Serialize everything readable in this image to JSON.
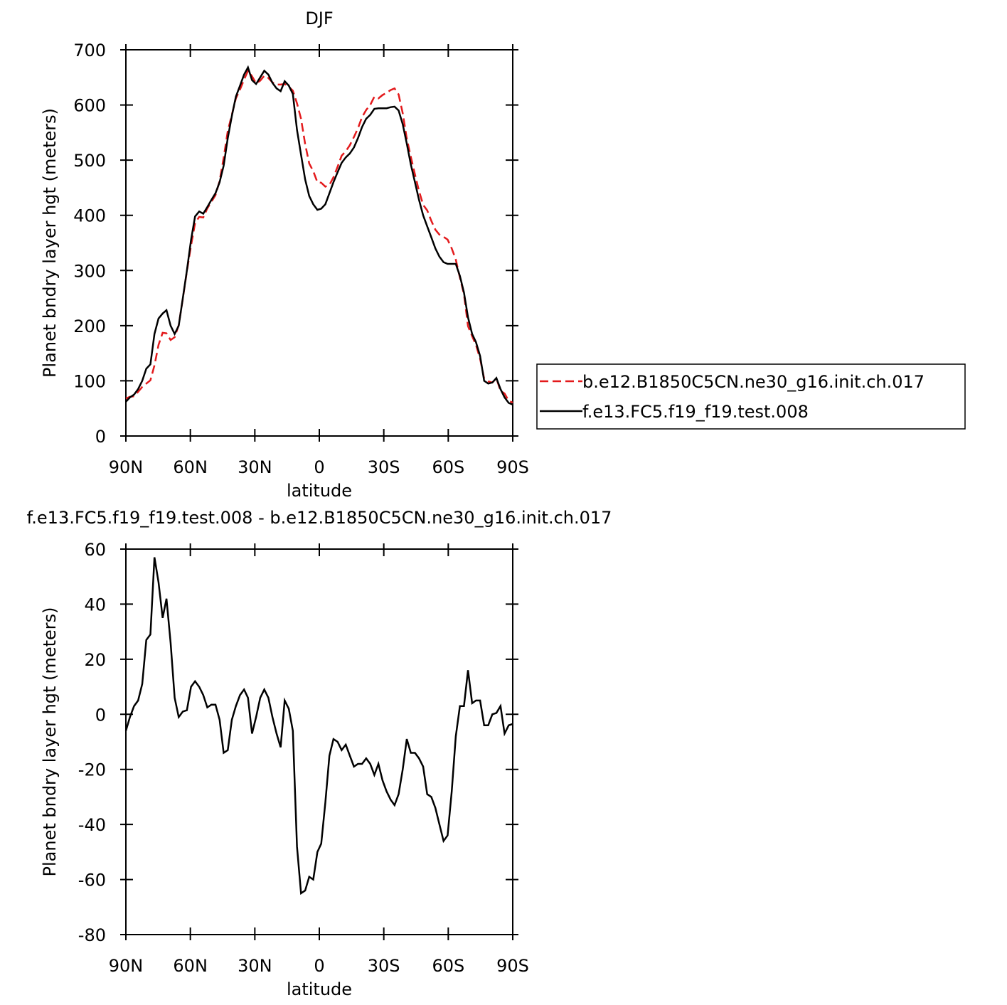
{
  "chart_data": [
    {
      "type": "line",
      "title": "DJF",
      "xlabel": "latitude",
      "ylabel": "Planet bndry layer hgt (meters)",
      "x": [
        90,
        88.1,
        86.2,
        84.3,
        82.4,
        80.5,
        78.6,
        76.7,
        74.8,
        72.9,
        71.1,
        69.2,
        67.3,
        65.4,
        63.5,
        61.6,
        59.7,
        57.8,
        55.9,
        54.0,
        52.1,
        50.2,
        48.3,
        46.4,
        44.5,
        42.6,
        40.7,
        38.8,
        36.9,
        35.0,
        33.2,
        31.3,
        29.4,
        27.5,
        25.6,
        23.7,
        21.8,
        19.9,
        18.0,
        16.1,
        14.2,
        12.3,
        10.4,
        8.5,
        6.6,
        4.7,
        2.8,
        0.9,
        -0.9,
        -2.8,
        -4.7,
        -6.6,
        -8.5,
        -10.4,
        -12.3,
        -14.2,
        -16.1,
        -18.0,
        -19.9,
        -21.8,
        -23.7,
        -25.6,
        -27.5,
        -29.4,
        -31.3,
        -33.2,
        -35.0,
        -36.9,
        -38.8,
        -40.7,
        -42.6,
        -44.5,
        -46.4,
        -48.3,
        -50.2,
        -52.1,
        -54.0,
        -55.9,
        -57.8,
        -59.7,
        -61.6,
        -63.5,
        -65.4,
        -67.3,
        -69.2,
        -71.1,
        -72.9,
        -74.8,
        -76.7,
        -78.6,
        -80.5,
        -82.4,
        -84.3,
        -86.2,
        -88.1,
        -90
      ],
      "series": [
        {
          "name": "b.e12.B1850C5CN.ne30_g16.init.ch.017",
          "color": "#e31a1c",
          "dash": true,
          "values": [
            68,
            71,
            72,
            80,
            89,
            95,
            101,
            128,
            165,
            187,
            186,
            174,
            179,
            201,
            249,
            298.5,
            345,
            386,
            397,
            396,
            412.5,
            424.5,
            436.5,
            462,
            504,
            553,
            582,
            612,
            628,
            646,
            662,
            652,
            639,
            644,
            653,
            649,
            641,
            637,
            637,
            638,
            633,
            626,
            603,
            575,
            529,
            494,
            480,
            460,
            459,
            452,
            455,
            469,
            488,
            508,
            516,
            527,
            542,
            558,
            578,
            591,
            600,
            615,
            612,
            618,
            622,
            627,
            630,
            619,
            585,
            539,
            506,
            474,
            444,
            419,
            409,
            390,
            374,
            365,
            361,
            356,
            340,
            320,
            287,
            257,
            199,
            181,
            165,
            140,
            104,
            99,
            97,
            104.5,
            82,
            77,
            64,
            60.5
          ]
        },
        {
          "name": "f.e13.FC5.f19_f19.test.008",
          "color": "#000000",
          "dash": false,
          "values": [
            62,
            70,
            75,
            85,
            100,
            122,
            130,
            185,
            213,
            222,
            228,
            200,
            185,
            200,
            250,
            300,
            355,
            398,
            407,
            403,
            415,
            428,
            440,
            460,
            490,
            540,
            580,
            615,
            635,
            655,
            668,
            645,
            638,
            650,
            662,
            655,
            640,
            630,
            625,
            643,
            635,
            620,
            555,
            510,
            465,
            435,
            420,
            410,
            412,
            420,
            440,
            460,
            478,
            495,
            505,
            512,
            523,
            540,
            560,
            575,
            582,
            593,
            594,
            594,
            594,
            596,
            597,
            590,
            565,
            530,
            492,
            460,
            428,
            400,
            380,
            360,
            340,
            325,
            315,
            312,
            312,
            312,
            290,
            260,
            215,
            185,
            170,
            145,
            100,
            95,
            97,
            105,
            85,
            70,
            60,
            57
          ]
        }
      ],
      "xlim": [
        90,
        -90
      ],
      "xticks": [
        {
          "value": 90,
          "label": "90N"
        },
        {
          "value": 60,
          "label": "60N"
        },
        {
          "value": 30,
          "label": "30N"
        },
        0,
        {
          "value": -30,
          "label": "30S"
        },
        {
          "value": -60,
          "label": "60S"
        },
        {
          "value": -90,
          "label": "90S"
        }
      ],
      "ylim": [
        0,
        700
      ],
      "yticks": [
        0,
        100,
        200,
        300,
        400,
        500,
        600,
        700
      ],
      "legend": "right"
    },
    {
      "type": "line",
      "title": "f.e13.FC5.f19_f19.test.008 - b.e12.B1850C5CN.ne30_g16.init.ch.017",
      "xlabel": "latitude",
      "ylabel": "Planet bndry layer hgt (meters)",
      "x": [
        90,
        88.1,
        86.2,
        84.3,
        82.4,
        80.5,
        78.6,
        76.7,
        74.8,
        72.9,
        71.1,
        69.2,
        67.3,
        65.4,
        63.5,
        61.6,
        59.7,
        57.8,
        55.9,
        54.0,
        52.1,
        50.2,
        48.3,
        46.4,
        44.5,
        42.6,
        40.7,
        38.8,
        36.9,
        35.0,
        33.2,
        31.3,
        29.4,
        27.5,
        25.6,
        23.7,
        21.8,
        19.9,
        18.0,
        16.1,
        14.2,
        12.3,
        10.4,
        8.5,
        6.6,
        4.7,
        2.8,
        0.9,
        -0.9,
        -2.8,
        -4.7,
        -6.6,
        -8.5,
        -10.4,
        -12.3,
        -14.2,
        -16.1,
        -18.0,
        -19.9,
        -21.8,
        -23.7,
        -25.6,
        -27.5,
        -29.4,
        -31.3,
        -33.2,
        -35.0,
        -36.9,
        -38.8,
        -40.7,
        -42.6,
        -44.5,
        -46.4,
        -48.3,
        -50.2,
        -52.1,
        -54.0,
        -55.9,
        -57.8,
        -59.7,
        -61.6,
        -63.5,
        -65.4,
        -67.3,
        -69.2,
        -71.1,
        -72.9,
        -74.8,
        -76.7,
        -78.6,
        -80.5,
        -82.4,
        -84.3,
        -86.2,
        -88.1,
        -90
      ],
      "series": [
        {
          "color": "#000000",
          "dash": false,
          "values": [
            -6,
            -1,
            3,
            5,
            11,
            27,
            29,
            57,
            48,
            35,
            42,
            26,
            6,
            -1,
            1,
            1.5,
            10,
            12,
            10,
            7,
            2.5,
            3.5,
            3.5,
            -2,
            -14,
            -13,
            -2,
            3,
            7,
            9,
            6,
            -7,
            -1,
            6,
            9,
            6,
            -1,
            -7,
            -12,
            5,
            2,
            -6,
            -48,
            -65,
            -64,
            -59,
            -60,
            -50,
            -47,
            -32,
            -15,
            -9,
            -10,
            -13,
            -11,
            -15,
            -19,
            -18,
            -18,
            -16,
            -18,
            -22,
            -18,
            -24,
            -28,
            -31,
            -33,
            -29,
            -20,
            -9,
            -14,
            -14,
            -16,
            -19,
            -29,
            -30,
            -34,
            -40,
            -46,
            -44,
            -28,
            -8,
            3,
            3,
            16,
            4,
            5,
            5,
            -4,
            -4,
            0,
            0.5,
            3,
            -7,
            -4,
            -3.5
          ]
        }
      ],
      "xlim": [
        90,
        -90
      ],
      "xticks": [
        {
          "value": 90,
          "label": "90N"
        },
        {
          "value": 60,
          "label": "60N"
        },
        {
          "value": 30,
          "label": "30N"
        },
        0,
        {
          "value": -30,
          "label": "30S"
        },
        {
          "value": -60,
          "label": "60S"
        },
        {
          "value": -90,
          "label": "90S"
        }
      ],
      "ylim": [
        -80,
        60
      ],
      "yticks": [
        -80,
        -60,
        -40,
        -20,
        0,
        20,
        40,
        60
      ]
    }
  ]
}
